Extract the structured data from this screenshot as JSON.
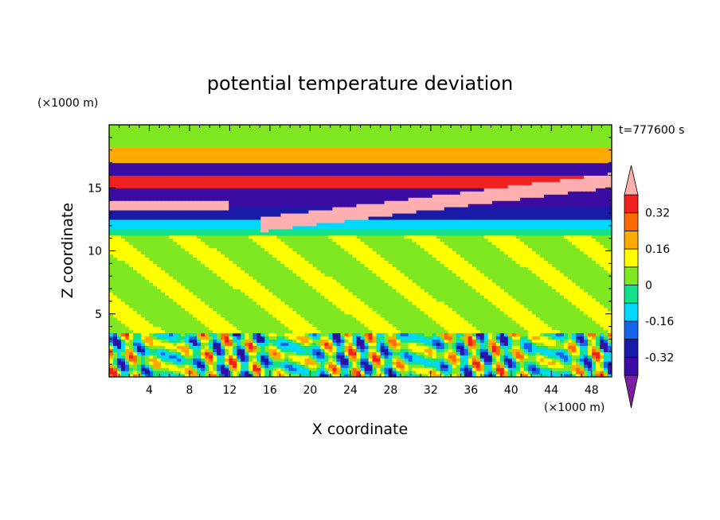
{
  "chart_data": {
    "type": "heatmap",
    "title": "potential temperature deviation",
    "xlabel": "X coordinate",
    "ylabel": "Z coordinate",
    "x_unit": "(×1000 m)",
    "y_unit": "(×1000 m)",
    "time_label": "t=777600 s",
    "xlim": [
      0,
      50
    ],
    "ylim": [
      0,
      20
    ],
    "x_ticks": [
      4,
      8,
      12,
      16,
      20,
      24,
      28,
      32,
      36,
      40,
      44,
      48
    ],
    "y_ticks": [
      5,
      10,
      15
    ],
    "colorbar": {
      "levels": [
        -0.4,
        -0.32,
        -0.24,
        -0.16,
        -0.08,
        0,
        0.08,
        0.16,
        0.24,
        0.32,
        0.4
      ],
      "colors": [
        "#7b1fa2",
        "#3a0ca3",
        "#1a1aa8",
        "#1565e8",
        "#00d8ff",
        "#12e38a",
        "#80e820",
        "#ffff00",
        "#ffaa00",
        "#ff6a00",
        "#ee2020",
        "#ffafaf"
      ],
      "labels": [
        "0.32",
        "0.16",
        "0",
        "-0.16",
        "-0.32"
      ],
      "label_values": [
        0.32,
        0.16,
        0,
        -0.16,
        -0.32
      ],
      "extend": "both"
    },
    "bands": [
      {
        "z": [
          18.3,
          20.0
        ],
        "value": 0.03,
        "desc": "upper"
      },
      {
        "z": [
          17.0,
          18.3
        ],
        "value": 0.2
      },
      {
        "z": [
          16.0,
          17.0
        ],
        "value": -0.35
      },
      {
        "z": [
          15.0,
          16.0
        ],
        "value": 0.33
      },
      {
        "z": [
          13.5,
          15.0
        ],
        "value": -0.37
      },
      {
        "z": [
          12.5,
          13.5
        ],
        "value": -0.3
      },
      {
        "z": [
          11.8,
          12.5
        ],
        "value": -0.12
      },
      {
        "z": [
          11.2,
          11.8
        ],
        "value": -0.05
      },
      {
        "z": [
          3.5,
          11.2
        ],
        "value": 0.06
      },
      {
        "z": [
          0.0,
          3.5
        ],
        "value": 0.0
      }
    ]
  }
}
